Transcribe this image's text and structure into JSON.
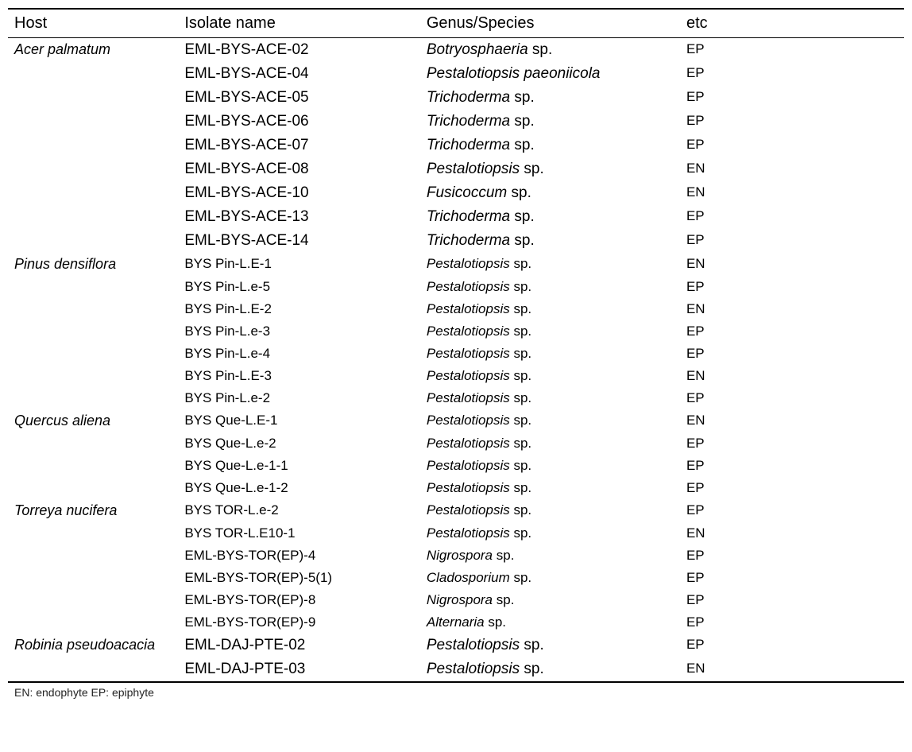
{
  "columns": [
    "Host",
    "Isolate name",
    "Genus/Species",
    "etc"
  ],
  "footnote": "EN: endophyte EP: epiphyte",
  "groups": [
    {
      "host": "Acer palmatum",
      "rows": [
        {
          "isolate": "EML-BYS-ACE-02",
          "genus_it": "Botryosphaeria",
          "genus_rest": " sp.",
          "etc": "EP",
          "size": "lg"
        },
        {
          "isolate": "EML-BYS-ACE-04",
          "genus_full_it": "Pestalotiopsis paeoniicola",
          "etc": "EP",
          "size": "lg"
        },
        {
          "isolate": "EML-BYS-ACE-05",
          "genus_it": "Trichoderma",
          "genus_rest": " sp.",
          "etc": "EP",
          "size": "lg"
        },
        {
          "isolate": "EML-BYS-ACE-06",
          "genus_it": "Trichoderma",
          "genus_rest": " sp.",
          "etc": "EP",
          "size": "lg"
        },
        {
          "isolate": "EML-BYS-ACE-07",
          "genus_it": "Trichoderma",
          "genus_rest": " sp.",
          "etc": "EP",
          "size": "lg"
        },
        {
          "isolate": "EML-BYS-ACE-08",
          "genus_it": "Pestalotiopsis",
          "genus_rest": " sp.",
          "etc": "EN",
          "size": "lg"
        },
        {
          "isolate": "EML-BYS-ACE-10",
          "genus_it": "Fusicoccum",
          "genus_rest": " sp.",
          "etc": "EN",
          "size": "lg"
        },
        {
          "isolate": "EML-BYS-ACE-13",
          "genus_it": "Trichoderma",
          "genus_rest": " sp.",
          "etc": "EP",
          "size": "lg"
        },
        {
          "isolate": "EML-BYS-ACE-14",
          "genus_it": "Trichoderma",
          "genus_rest": " sp.",
          "etc": "EP",
          "size": "lg"
        }
      ]
    },
    {
      "host": "Pinus densiflora",
      "rows": [
        {
          "isolate": "BYS Pin-L.E-1",
          "genus_it": "Pestalotiopsis",
          "genus_rest": " sp.",
          "etc": "EN",
          "size": "sm"
        },
        {
          "isolate": "BYS Pin-L.e-5",
          "genus_it": "Pestalotiopsis",
          "genus_rest": " sp.",
          "etc": "EP",
          "size": "sm"
        },
        {
          "isolate": "BYS Pin-L.E-2",
          "genus_it": "Pestalotiopsis",
          "genus_rest": " sp.",
          "etc": "EN",
          "size": "sm"
        },
        {
          "isolate": "BYS Pin-L.e-3",
          "genus_it": "Pestalotiopsis",
          "genus_rest": " sp.",
          "etc": "EP",
          "size": "sm"
        },
        {
          "isolate": "BYS Pin-L.e-4",
          "genus_it": "Pestalotiopsis",
          "genus_rest": " sp.",
          "etc": "EP",
          "size": "sm"
        },
        {
          "isolate": "BYS Pin-L.E-3",
          "genus_it": "Pestalotiopsis",
          "genus_rest": " sp.",
          "etc": "EN",
          "size": "sm"
        },
        {
          "isolate": "BYS Pin-L.e-2",
          "genus_it": "Pestalotiopsis",
          "genus_rest": " sp.",
          "etc": "EP",
          "size": "sm"
        }
      ]
    },
    {
      "host": "Quercus aliena",
      "rows": [
        {
          "isolate": "BYS Que-L.E-1",
          "genus_it": "Pestalotiopsis",
          "genus_rest": " sp.",
          "etc": "EN",
          "size": "sm"
        },
        {
          "isolate": "BYS Que-L.e-2",
          "genus_it": "Pestalotiopsis",
          "genus_rest": " sp.",
          "etc": "EP",
          "size": "sm"
        },
        {
          "isolate": "BYS Que-L.e-1-1",
          "genus_it": "Pestalotiopsis",
          "genus_rest": " sp.",
          "etc": "EP",
          "size": "sm"
        },
        {
          "isolate": "BYS Que-L.e-1-2",
          "genus_it": "Pestalotiopsis",
          "genus_rest": " sp.",
          "etc": "EP",
          "size": "sm"
        }
      ]
    },
    {
      "host": "Torreya nucifera",
      "rows": [
        {
          "isolate": "BYS TOR-L.e-2",
          "genus_it": "Pestalotiopsis",
          "genus_rest": " sp.",
          "etc": "EP",
          "size": "sm"
        },
        {
          "isolate": "BYS TOR-L.E10-1",
          "genus_it": "Pestalotiopsis",
          "genus_rest": " sp.",
          "etc": "EN",
          "size": "sm"
        },
        {
          "isolate": "EML-BYS-TOR(EP)-4",
          "genus_it": "Nigrospora",
          "genus_rest": " sp.",
          "etc": "EP",
          "size": "sm"
        },
        {
          "isolate": "EML-BYS-TOR(EP)-5(1)",
          "genus_it": "Cladosporium",
          "genus_rest": " sp.",
          "etc": "EP",
          "size": "sm"
        },
        {
          "isolate": "EML-BYS-TOR(EP)-8",
          "genus_it": "Nigrospora",
          "genus_rest": " sp.",
          "etc": "EP",
          "size": "sm"
        },
        {
          "isolate": "EML-BYS-TOR(EP)-9",
          "genus_it": "Alternaria",
          "genus_rest": " sp.",
          "etc": "EP",
          "size": "sm"
        }
      ]
    },
    {
      "host": "Robinia pseudoacacia",
      "rows": [
        {
          "isolate": "EML-DAJ-PTE-02",
          "genus_it": "Pestalotiopsis",
          "genus_rest": " sp.",
          "etc": "EP",
          "size": "lg"
        },
        {
          "isolate": "EML-DAJ-PTE-03",
          "genus_it": "Pestalotiopsis",
          "genus_rest": " sp.",
          "etc": "EN",
          "size": "lg"
        }
      ]
    }
  ],
  "style": {
    "font_lg": "19px",
    "font_sm": "17px",
    "host_fontsize": "18px"
  }
}
